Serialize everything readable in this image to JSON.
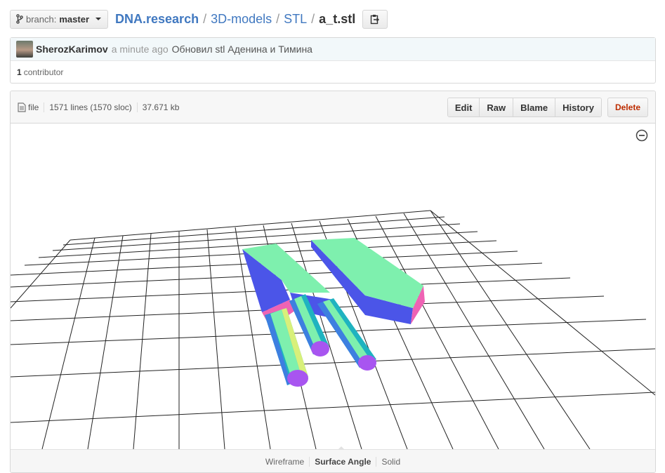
{
  "topbar": {
    "branch_label": "branch:",
    "branch_value": "master",
    "breadcrumb": [
      "DNA.research",
      "3D-models",
      "STL"
    ],
    "separator": "/",
    "file_name": "a_t.stl"
  },
  "commit": {
    "author": "SherozKarimov",
    "time_ago": "a minute ago",
    "message": "Обновил stl Аденина и Тимина",
    "contributor_count": "1",
    "contributor_label": "contributor"
  },
  "file": {
    "type_label": "file",
    "lines": "1571 lines (1570 sloc)",
    "size": "37.671 kb",
    "buttons": {
      "edit": "Edit",
      "raw": "Raw",
      "blame": "Blame",
      "history": "History",
      "delete": "Delete"
    }
  },
  "viewer": {
    "modes": [
      "Wireframe",
      "Surface Angle",
      "Solid"
    ],
    "active_mode": "Surface Angle",
    "colors": {
      "top": "#7ef0ae",
      "side_blue": "#4b55e8",
      "side_pink": "#ee63b4",
      "cap": "#a855f0",
      "grid": "#222222"
    }
  }
}
